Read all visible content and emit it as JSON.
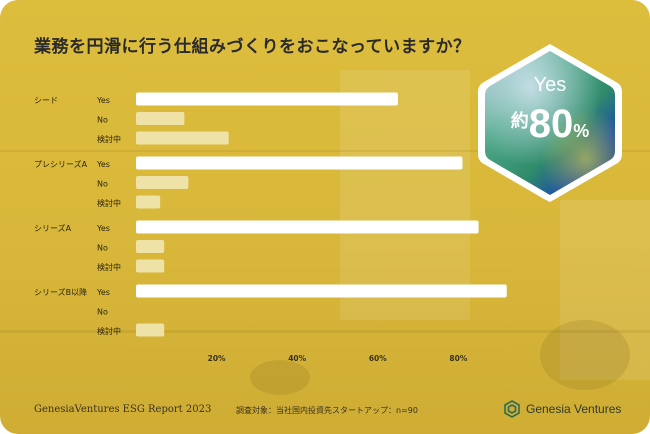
{
  "title": "業務を円滑に行う仕組みづくりをおこなっていますか？",
  "badge": {
    "label": "Yes",
    "prefix": "約",
    "value": "80",
    "unit": "%"
  },
  "footer": {
    "report": "GenesiaVentures ESG Report 2023",
    "note": "調査対象：当社国内投資先スタートアップ：n=90",
    "brand": "Genesia Ventures"
  },
  "colors": {
    "background": "#D9B93B",
    "bar": "#FFFFFF",
    "bar_muted": "#EFE2A6"
  },
  "icons": {
    "logo": "genesia-logo-icon",
    "badge": "hexagon-badge-icon"
  },
  "chart_data": {
    "type": "bar",
    "orientation": "horizontal",
    "xlim": [
      0,
      100
    ],
    "xticks": [
      "20%",
      "40%",
      "60%",
      "80%"
    ],
    "tick_values": [
      20,
      40,
      60,
      80
    ],
    "groups": [
      {
        "name": "シード",
        "categories": [
          "Yes",
          "No",
          "検討中"
        ],
        "values": [
          65,
          12,
          23
        ]
      },
      {
        "name": "プレシリーズA",
        "categories": [
          "Yes",
          "No",
          "検討中"
        ],
        "values": [
          81,
          13,
          6
        ]
      },
      {
        "name": "シリーズA",
        "categories": [
          "Yes",
          "No",
          "検討中"
        ],
        "values": [
          85,
          7,
          7
        ]
      },
      {
        "name": "シリーズB以降",
        "categories": [
          "Yes",
          "No",
          "検討中"
        ],
        "values": [
          92,
          0,
          7
        ]
      }
    ]
  }
}
